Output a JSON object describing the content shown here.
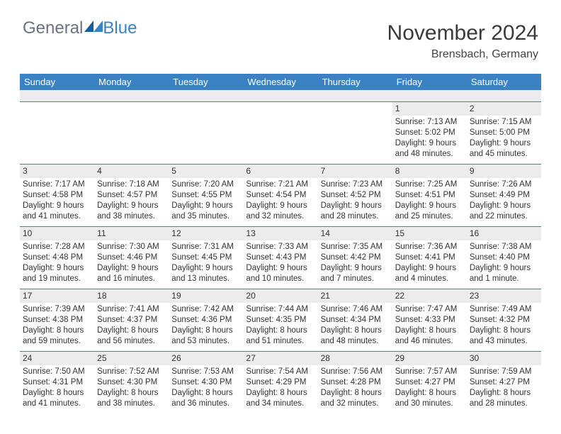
{
  "brand": {
    "part1": "General",
    "part2": "Blue"
  },
  "title": "November 2024",
  "location": "Brensbach, Germany",
  "header_bg": "#3b82c4",
  "header_text_color": "#ffffff",
  "daynum_bg": "#ececec",
  "border_color": "#3b82c4",
  "page_bg": "#ffffff",
  "text_color": "#333333",
  "font_family": "Arial",
  "title_fontsize": 30,
  "location_fontsize": 16,
  "header_fontsize": 13,
  "cell_fontsize": 11.5,
  "columns": [
    "Sunday",
    "Monday",
    "Tuesday",
    "Wednesday",
    "Thursday",
    "Friday",
    "Saturday"
  ],
  "weeks": [
    [
      null,
      null,
      null,
      null,
      null,
      {
        "n": "1",
        "sunrise": "7:13 AM",
        "sunset": "5:02 PM",
        "dh": "9",
        "dm": "48"
      },
      {
        "n": "2",
        "sunrise": "7:15 AM",
        "sunset": "5:00 PM",
        "dh": "9",
        "dm": "45"
      }
    ],
    [
      {
        "n": "3",
        "sunrise": "7:17 AM",
        "sunset": "4:58 PM",
        "dh": "9",
        "dm": "41"
      },
      {
        "n": "4",
        "sunrise": "7:18 AM",
        "sunset": "4:57 PM",
        "dh": "9",
        "dm": "38"
      },
      {
        "n": "5",
        "sunrise": "7:20 AM",
        "sunset": "4:55 PM",
        "dh": "9",
        "dm": "35"
      },
      {
        "n": "6",
        "sunrise": "7:21 AM",
        "sunset": "4:54 PM",
        "dh": "9",
        "dm": "32"
      },
      {
        "n": "7",
        "sunrise": "7:23 AM",
        "sunset": "4:52 PM",
        "dh": "9",
        "dm": "28"
      },
      {
        "n": "8",
        "sunrise": "7:25 AM",
        "sunset": "4:51 PM",
        "dh": "9",
        "dm": "25"
      },
      {
        "n": "9",
        "sunrise": "7:26 AM",
        "sunset": "4:49 PM",
        "dh": "9",
        "dm": "22"
      }
    ],
    [
      {
        "n": "10",
        "sunrise": "7:28 AM",
        "sunset": "4:48 PM",
        "dh": "9",
        "dm": "19"
      },
      {
        "n": "11",
        "sunrise": "7:30 AM",
        "sunset": "4:46 PM",
        "dh": "9",
        "dm": "16"
      },
      {
        "n": "12",
        "sunrise": "7:31 AM",
        "sunset": "4:45 PM",
        "dh": "9",
        "dm": "13"
      },
      {
        "n": "13",
        "sunrise": "7:33 AM",
        "sunset": "4:43 PM",
        "dh": "9",
        "dm": "10"
      },
      {
        "n": "14",
        "sunrise": "7:35 AM",
        "sunset": "4:42 PM",
        "dh": "9",
        "dm": "7"
      },
      {
        "n": "15",
        "sunrise": "7:36 AM",
        "sunset": "4:41 PM",
        "dh": "9",
        "dm": "4"
      },
      {
        "n": "16",
        "sunrise": "7:38 AM",
        "sunset": "4:40 PM",
        "dh": "9",
        "dm": "1"
      }
    ],
    [
      {
        "n": "17",
        "sunrise": "7:39 AM",
        "sunset": "4:38 PM",
        "dh": "8",
        "dm": "59"
      },
      {
        "n": "18",
        "sunrise": "7:41 AM",
        "sunset": "4:37 PM",
        "dh": "8",
        "dm": "56"
      },
      {
        "n": "19",
        "sunrise": "7:42 AM",
        "sunset": "4:36 PM",
        "dh": "8",
        "dm": "53"
      },
      {
        "n": "20",
        "sunrise": "7:44 AM",
        "sunset": "4:35 PM",
        "dh": "8",
        "dm": "51"
      },
      {
        "n": "21",
        "sunrise": "7:46 AM",
        "sunset": "4:34 PM",
        "dh": "8",
        "dm": "48"
      },
      {
        "n": "22",
        "sunrise": "7:47 AM",
        "sunset": "4:33 PM",
        "dh": "8",
        "dm": "46"
      },
      {
        "n": "23",
        "sunrise": "7:49 AM",
        "sunset": "4:32 PM",
        "dh": "8",
        "dm": "43"
      }
    ],
    [
      {
        "n": "24",
        "sunrise": "7:50 AM",
        "sunset": "4:31 PM",
        "dh": "8",
        "dm": "41"
      },
      {
        "n": "25",
        "sunrise": "7:52 AM",
        "sunset": "4:30 PM",
        "dh": "8",
        "dm": "38"
      },
      {
        "n": "26",
        "sunrise": "7:53 AM",
        "sunset": "4:30 PM",
        "dh": "8",
        "dm": "36"
      },
      {
        "n": "27",
        "sunrise": "7:54 AM",
        "sunset": "4:29 PM",
        "dh": "8",
        "dm": "34"
      },
      {
        "n": "28",
        "sunrise": "7:56 AM",
        "sunset": "4:28 PM",
        "dh": "8",
        "dm": "32"
      },
      {
        "n": "29",
        "sunrise": "7:57 AM",
        "sunset": "4:27 PM",
        "dh": "8",
        "dm": "30"
      },
      {
        "n": "30",
        "sunrise": "7:59 AM",
        "sunset": "4:27 PM",
        "dh": "8",
        "dm": "28"
      }
    ]
  ],
  "labels": {
    "sunrise": "Sunrise:",
    "sunset": "Sunset:",
    "daylight_prefix": "Daylight:",
    "hours_word": "hours",
    "and_word": "and",
    "minute_word": "minute",
    "minutes_word": "minutes"
  }
}
